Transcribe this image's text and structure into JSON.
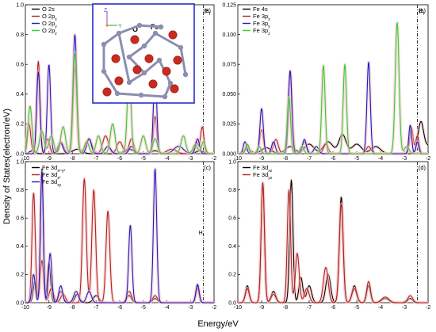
{
  "figure": {
    "ylabel": "Density of States(electron/eV)",
    "xlabel": "Energy/eV",
    "fermi_label": "E",
    "fermi_sub": "f",
    "fermi_energy": -2.45,
    "colors": {
      "black": "#000000",
      "red": "#b22222",
      "blue": "#1a1acc",
      "green": "#33cc33",
      "inset_border": "#2b2bd0",
      "glow": "#f5c6c6"
    }
  },
  "inset": {
    "label_o": "O",
    "label_fe": "Fe",
    "axis_z": "Z",
    "axis_y": "Y",
    "atom_o_color": "#cc2a1f",
    "atom_fe_color": "#8a8fb0"
  },
  "chart_data": [
    {
      "type": "line",
      "panel": "(a)",
      "xlim": [
        -10,
        -2
      ],
      "ylim": [
        0,
        1.0
      ],
      "yticks": [
        "0.0",
        "0.2",
        "0.4",
        "0.6",
        "0.8",
        "1.0"
      ],
      "xticks": [
        "-10",
        "-9",
        "-8",
        "-7",
        "-6",
        "-5",
        "-4",
        "-3",
        "-2"
      ],
      "series": [
        {
          "name": "O 2s",
          "color": "#000000",
          "peaks": [
            [
              -9.7,
              0.02,
              0.12
            ],
            [
              -7.8,
              0.03,
              0.2
            ],
            [
              -5.6,
              0.03,
              0.2
            ],
            [
              -4.5,
              0.02,
              0.15
            ],
            [
              -2.6,
              0.02,
              0.15
            ]
          ]
        },
        {
          "name": "O 2px",
          "color": "#b22222",
          "peaks": [
            [
              -9.85,
              0.2,
              0.08
            ],
            [
              -9.45,
              0.62,
              0.07
            ],
            [
              -9.05,
              0.1,
              0.08
            ],
            [
              -8.5,
              0.08,
              0.12
            ],
            [
              -7.9,
              0.58,
              0.08
            ],
            [
              -7.3,
              0.1,
              0.12
            ],
            [
              -6.6,
              0.12,
              0.12
            ],
            [
              -6.0,
              0.08,
              0.12
            ],
            [
              -5.5,
              0.1,
              0.1
            ],
            [
              -4.5,
              0.25,
              0.07
            ],
            [
              -3.8,
              0.03,
              0.2
            ],
            [
              -2.75,
              0.08,
              0.08
            ],
            [
              -2.5,
              0.18,
              0.07
            ]
          ]
        },
        {
          "name": "O 2py",
          "color": "#1a1acc",
          "peaks": [
            [
              -9.45,
              0.55,
              0.07
            ],
            [
              -9.0,
              0.6,
              0.07
            ],
            [
              -8.5,
              0.07,
              0.1
            ],
            [
              -7.9,
              0.8,
              0.08
            ],
            [
              -7.3,
              0.1,
              0.1
            ],
            [
              -6.5,
              0.05,
              0.12
            ],
            [
              -5.5,
              0.05,
              0.1
            ],
            [
              -4.5,
              0.55,
              0.07
            ],
            [
              -3.5,
              0.05,
              0.2
            ],
            [
              -2.7,
              0.1,
              0.08
            ]
          ]
        },
        {
          "name": "O 2pz",
          "color": "#33cc33",
          "peaks": [
            [
              -9.8,
              0.32,
              0.08
            ],
            [
              -9.3,
              0.15,
              0.1
            ],
            [
              -8.9,
              0.12,
              0.1
            ],
            [
              -8.4,
              0.18,
              0.1
            ],
            [
              -7.9,
              0.68,
              0.08
            ],
            [
              -7.4,
              0.08,
              0.1
            ],
            [
              -6.9,
              0.12,
              0.1
            ],
            [
              -6.3,
              0.2,
              0.1
            ],
            [
              -5.6,
              0.55,
              0.08
            ],
            [
              -5.0,
              0.12,
              0.1
            ],
            [
              -4.5,
              0.1,
              0.1
            ],
            [
              -3.3,
              0.12,
              0.1
            ],
            [
              -2.8,
              0.06,
              0.1
            ],
            [
              -2.45,
              0.08,
              0.08
            ]
          ]
        }
      ]
    },
    {
      "type": "line",
      "panel": "(b)",
      "xlim": [
        -10,
        -2
      ],
      "ylim": [
        0,
        0.125
      ],
      "yticks": [
        "0.000",
        "0.025",
        "0.050",
        "0.075",
        "0.100",
        "0.125"
      ],
      "xticks": [
        "-10",
        "-9",
        "-8",
        "-7",
        "-6",
        "-5",
        "-4",
        "-3",
        "-2"
      ],
      "series": [
        {
          "name": "Fe 4s",
          "color": "#000000",
          "peaks": [
            [
              -9.6,
              0.004,
              0.15
            ],
            [
              -8.8,
              0.005,
              0.2
            ],
            [
              -7.8,
              0.006,
              0.2
            ],
            [
              -7.0,
              0.008,
              0.2
            ],
            [
              -6.2,
              0.01,
              0.2
            ],
            [
              -5.6,
              0.016,
              0.15
            ],
            [
              -5.0,
              0.008,
              0.2
            ],
            [
              -4.2,
              0.006,
              0.2
            ],
            [
              -2.3,
              0.027,
              0.12
            ],
            [
              -2.0,
              0.006,
              0.1
            ]
          ]
        },
        {
          "name": "Fe 3px",
          "color": "#b22222",
          "peaks": [
            [
              -9.6,
              0.007,
              0.08
            ],
            [
              -9.0,
              0.02,
              0.08
            ],
            [
              -8.4,
              0.012,
              0.1
            ],
            [
              -7.8,
              0.068,
              0.08
            ],
            [
              -7.2,
              0.01,
              0.1
            ],
            [
              -6.3,
              0.008,
              0.1
            ],
            [
              -4.5,
              0.006,
              0.1
            ],
            [
              -2.7,
              0.022,
              0.07
            ],
            [
              -2.45,
              0.015,
              0.07
            ]
          ]
        },
        {
          "name": "Fe 3py",
          "color": "#1a1acc",
          "peaks": [
            [
              -9.7,
              0.01,
              0.07
            ],
            [
              -9.0,
              0.038,
              0.07
            ],
            [
              -8.5,
              0.01,
              0.08
            ],
            [
              -7.8,
              0.07,
              0.07
            ],
            [
              -7.2,
              0.012,
              0.08
            ],
            [
              -6.7,
              0.006,
              0.1
            ],
            [
              -4.5,
              0.077,
              0.07
            ],
            [
              -2.75,
              0.024,
              0.06
            ],
            [
              -2.45,
              0.01,
              0.06
            ]
          ]
        },
        {
          "name": "Fe 3pz",
          "color": "#33cc33",
          "peaks": [
            [
              -9.6,
              0.008,
              0.07
            ],
            [
              -9.1,
              0.006,
              0.08
            ],
            [
              -7.85,
              0.047,
              0.07
            ],
            [
              -7.3,
              0.006,
              0.08
            ],
            [
              -6.4,
              0.074,
              0.07
            ],
            [
              -5.5,
              0.075,
              0.07
            ],
            [
              -3.3,
              0.11,
              0.08
            ],
            [
              -2.9,
              0.006,
              0.1
            ]
          ]
        }
      ]
    },
    {
      "type": "line",
      "panel": "(c)",
      "xlim": [
        -10,
        -2
      ],
      "ylim": [
        0,
        1.0
      ],
      "yticks": [
        "0.0",
        "0.2",
        "0.4",
        "0.6",
        "0.8",
        "1.0"
      ],
      "xticks": [
        "-10",
        "-9",
        "-8",
        "-7",
        "-6",
        "-5",
        "-4",
        "-3",
        "-2"
      ],
      "series": [
        {
          "name": "Fe 3dx²-y²",
          "color": "#000000",
          "peaks": [
            [
              -9.6,
              0.15,
              0.07
            ],
            [
              -9.3,
              0.95,
              0.06
            ],
            [
              -9.0,
              0.28,
              0.07
            ],
            [
              -8.5,
              0.08,
              0.1
            ],
            [
              -7.8,
              0.06,
              0.1
            ],
            [
              -7.0,
              0.05,
              0.12
            ],
            [
              -5.6,
              0.05,
              0.1
            ],
            [
              -4.5,
              0.03,
              0.1
            ],
            [
              -2.7,
              0.12,
              0.07
            ]
          ]
        },
        {
          "name": "Fe 3dz²",
          "color": "#b22222",
          "peaks": [
            [
              -9.65,
              0.78,
              0.07
            ],
            [
              -9.3,
              0.3,
              0.07
            ],
            [
              -8.9,
              0.1,
              0.1
            ],
            [
              -8.4,
              0.06,
              0.1
            ],
            [
              -7.5,
              0.88,
              0.08
            ],
            [
              -7.1,
              0.8,
              0.08
            ],
            [
              -6.5,
              0.65,
              0.08
            ],
            [
              -5.6,
              0.08,
              0.1
            ],
            [
              -4.5,
              0.05,
              0.1
            ],
            [
              -2.7,
              0.1,
              0.07
            ]
          ]
        },
        {
          "name": "Fe 3dxy",
          "color": "#1a1acc",
          "peaks": [
            [
              -9.65,
              0.2,
              0.07
            ],
            [
              -9.3,
              0.93,
              0.06
            ],
            [
              -8.95,
              0.35,
              0.07
            ],
            [
              -8.5,
              0.12,
              0.08
            ],
            [
              -7.85,
              0.08,
              0.1
            ],
            [
              -7.3,
              0.08,
              0.1
            ],
            [
              -5.55,
              0.55,
              0.07
            ],
            [
              -4.5,
              0.95,
              0.07
            ],
            [
              -2.7,
              0.13,
              0.07
            ]
          ]
        }
      ]
    },
    {
      "type": "line",
      "panel": "(d)",
      "xlim": [
        -10,
        -2
      ],
      "ylim": [
        0,
        1.0
      ],
      "yticks": [
        "0.0",
        "0.2",
        "0.4",
        "0.6",
        "0.8",
        "1.0"
      ],
      "xticks": [
        "-10",
        "-9",
        "-8",
        "-7",
        "-6",
        "-5",
        "-4",
        "-3",
        "-2"
      ],
      "series": [
        {
          "name": "Fe 3dxz",
          "color": "#000000",
          "peaks": [
            [
              -9.6,
              0.12,
              0.08
            ],
            [
              -8.95,
              0.85,
              0.07
            ],
            [
              -8.5,
              0.08,
              0.1
            ],
            [
              -7.75,
              0.87,
              0.07
            ],
            [
              -7.35,
              0.18,
              0.08
            ],
            [
              -7.0,
              0.12,
              0.1
            ],
            [
              -6.2,
              0.2,
              0.1
            ],
            [
              -5.65,
              0.75,
              0.08
            ],
            [
              -5.1,
              0.12,
              0.1
            ],
            [
              -4.5,
              0.12,
              0.08
            ],
            [
              -3.8,
              0.03,
              0.15
            ],
            [
              -2.75,
              0.03,
              0.1
            ]
          ]
        },
        {
          "name": "Fe 3dyz",
          "color": "#b22222",
          "peaks": [
            [
              -9.6,
              0.1,
              0.08
            ],
            [
              -8.95,
              0.85,
              0.07
            ],
            [
              -8.5,
              0.06,
              0.1
            ],
            [
              -7.85,
              0.8,
              0.07
            ],
            [
              -7.5,
              0.35,
              0.08
            ],
            [
              -7.1,
              0.1,
              0.1
            ],
            [
              -6.3,
              0.25,
              0.1
            ],
            [
              -5.65,
              0.7,
              0.08
            ],
            [
              -5.1,
              0.1,
              0.1
            ],
            [
              -4.5,
              0.15,
              0.08
            ],
            [
              -3.8,
              0.04,
              0.15
            ],
            [
              -2.75,
              0.05,
              0.1
            ]
          ]
        }
      ]
    }
  ]
}
